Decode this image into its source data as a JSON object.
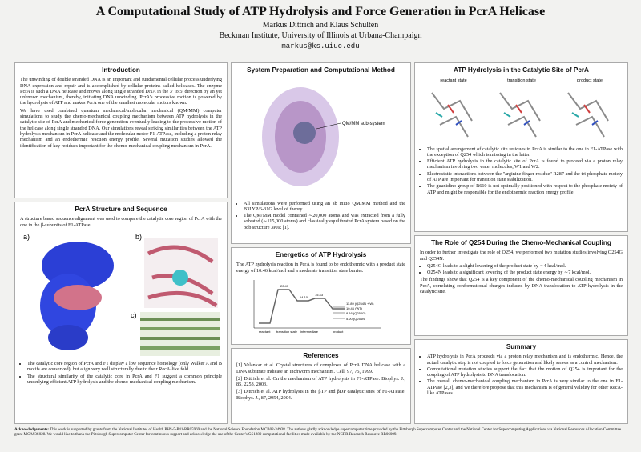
{
  "header": {
    "title": "A Computational Study of ATP Hydrolysis and Force Generation in PcrA Helicase",
    "authors": "Markus Dittrich and Klaus Schulten",
    "affiliation": "Beckman Institute, University of Illinois at Urbana-Champaign",
    "email": "markus@ks.uiuc.edu"
  },
  "introduction": {
    "heading": "Introduction",
    "paragraphs": [
      "The unwinding of double stranded DNA is an important and fundamental cellular process underlying DNA expression and repair and is accomplished by cellular proteins called helicases. The enzyme PcrA is such a DNA helicase and moves along single stranded DNA in the 3′ to 5′ direction by an yet unknown mechanism, thereby, initiating DNA unwinding. PcrA's processive motion is powered by the hydrolysis of ATP and makes PcrA one of the smallest molecular motors known.",
      "We have used combined quantum mechanical/molecular mechanical (QM/MM) computer simulations to study the chemo-mechanical coupling mechanism between ATP hydrolysis in the catalytic site of PcrA and mechanical force generation eventually leading to the processive motion of the helicase along single stranded DNA. Our simulations reveal striking similarities between the ATP hydrolysis mechanism in PcrA helicase and the molecular motor F1-ATPase, including a proton relay mechanism and an endothermic reaction energy profile. Several mutation studies allowed the identification of key residues important for the chemo-mechanical coupling mechanism in PcrA."
    ]
  },
  "structure": {
    "heading": "PcrA Structure and Sequence",
    "intro": "A structure based sequence alignment was used to compare the catalytic core region of PcrA with the one in the β-subunits of F1-ATPase.",
    "panels": [
      "a)",
      "b)",
      "c)"
    ],
    "bullets": [
      "The catalytic core region of PcrA and F1 display a low sequence homology (only Walker A and B motifs are conserved), but align very well structurally due to their RecA-like fold.",
      "The structural similarity of the catalytic core in PcrA and F1 suggest a common principle underlying efficient ATP hydrolysis and the chemo-mechanical coupling mechanism."
    ]
  },
  "system": {
    "heading": "System Preparation and Computational Method",
    "figure_label": "QM/MM sub-system",
    "bullets": [
      "All simulations were performed using an ab initio QM/MM method and the B3LYP/6-31G level of theory.",
      "The QM/MM model contained ∼20,000 atoms and was extracted from a fully solvated (∼115,000 atoms) and classically equilibrated PcrA system based on the pdb structure 3PJR [1]."
    ]
  },
  "energetics": {
    "heading": "Energetics of ATP Hydrolysis",
    "text": "The ATP hydrolysis reaction in PcrA is found to be endothermic with a product state energy of 10.46 kcal/mol and a moderate transition state barrier.",
    "states": [
      "reactant",
      "transition state",
      "intermediate",
      "product"
    ],
    "levels": [
      "20.47",
      "14.10",
      "15.43",
      "11.89 (Q254N + W)",
      "10.46 (WT)",
      "8.16 (Q254G)",
      "5.20 (Q254N)"
    ]
  },
  "references": {
    "heading": "References",
    "items": [
      "[1] Velankar et al. Crystal structures of complexes of PcrA DNA helicase with a DNA substrate indicate an inchworm mechanism. Cell, 97, 75, 1999.",
      "[2] Dittrich et al. On the mechanism of ATP hydrolysis in F1-ATPase. Biophys. J., 85, 2253, 2003.",
      "[3] Dittrich et al. ATP hydrolysis in the βTP and βDP catalytic sites of F1-ATPase. Biophys. J., 87, 2954, 2004."
    ]
  },
  "catalytic": {
    "heading": "ATP Hydrolysis in the Catalytic Site of PcrA",
    "states": [
      "reactant state",
      "transition state",
      "product state"
    ],
    "bullets": [
      "The spatial arrangement of catalytic site residues in PcrA is similar to the one in F1-ATPase with the exception of Q254 which is missing in the latter.",
      "Efficient ATP hydrolysis in the catalytic site of PcrA is found to proceed via a proton relay mechanism involving two water molecules, W1 and W2.",
      "Electrostatic interactions between the \"arginine finger residue\" R287 and the tri-phosphate moiety of ATP are important for transition state stabilization.",
      "The guanidino group of R610 is not optimally positioned with respect to the phosphate moiety of ATP and might be responsible for the endothermic reaction energy profile."
    ]
  },
  "q254": {
    "heading": "The Role of Q254 During the Chemo-Mechanical Coupling",
    "intro": "In order to further investigate the role of Q254, we performed two mutation studies involving Q254G and Q254N:",
    "bullets": [
      "Q254G leads to a slight lowering of the product state by ∼4 kcal/mol.",
      "Q254N leads to a significant lowering of the product state energy by ∼7 kcal/mol."
    ],
    "conclusion": "The findings show that Q254 is a key component of the chemo-mechanical coupling mechanism in PcrA, correlating conformational changes induced by DNA translocation to ATP hydrolysis in the catalytic site."
  },
  "summary": {
    "heading": "Summary",
    "bullets": [
      "ATP hydrolysis in PcrA proceeds via a proton relay mechanism and is endothermic. Hence, the actual catalytic step is not coupled to force generation and likely serves as a control mechanism.",
      "Computational mutation studies support the fact that the motion of Q254 is important for the coupling of ATP hydrolysis to DNA translocation.",
      "The overall chemo-mechanical coupling mechanism in PcrA is very similar to the one in F1-ATPase [2,3], and we therefore propose that this mechanism is of general validity for other RecA-like ATPases."
    ]
  },
  "acknowledgements": {
    "label": "Acknowledgements:",
    "text": "This work is supported by grants from the National Institutes of Health PHS-5-P41-RR05969 and the National Science Foundation MCB02-34938. The authors gladly acknowledge supercomputer time provided by the Pittsburgh Supercomputer Center and the National Center for Supercomputing Applications via National Resources Allocation Committee grant MCA93S028. We would like to thank the Pittsburgh Supercomputer Center for continuous support and acknowledge the use of the Center's GS1280 computational facilities made available by the NCRR Research Resource RR06009."
  }
}
